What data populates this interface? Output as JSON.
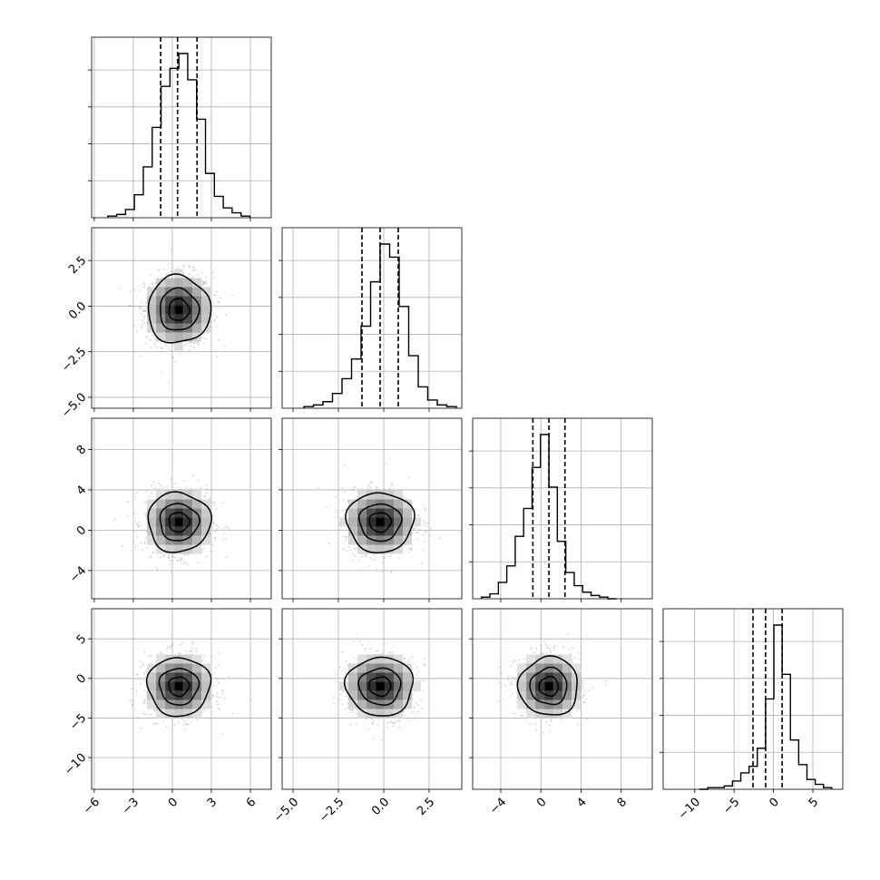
{
  "chart_data": {
    "type": "corner",
    "grid": true,
    "colors": {
      "line": "#000000",
      "density": "#000000",
      "points": "#9a9a9a",
      "grid": "#b0b0b0"
    },
    "parameters": [
      {
        "range": [
          -6.2,
          7.6
        ],
        "mean": 0.5,
        "sigma": 1.3,
        "quantiles": [
          -0.9,
          0.4,
          1.9
        ],
        "ticks": [
          -6,
          -3,
          0,
          3,
          6
        ],
        "tick_labels": [
          "−6",
          "−3",
          "0",
          "3",
          "6"
        ]
      },
      {
        "range": [
          -5.6,
          4.3
        ],
        "mean": -0.2,
        "sigma": 1.0,
        "quantiles": [
          -1.2,
          -0.2,
          0.8
        ],
        "ticks": [
          -5.0,
          -2.5,
          0.0,
          2.5
        ],
        "tick_labels": [
          "−5.0",
          "−2.5",
          "0.0",
          "2.5"
        ]
      },
      {
        "range": [
          -6.8,
          11.1
        ],
        "mean": 0.8,
        "sigma": 1.6,
        "quantiles": [
          -0.8,
          0.8,
          2.4
        ],
        "ticks": [
          -4,
          0,
          4,
          8
        ],
        "tick_labels": [
          "−4",
          "0",
          "4",
          "8"
        ]
      },
      {
        "range": [
          -14.0,
          8.8
        ],
        "mean": -1.0,
        "sigma": 2.0,
        "quantiles": [
          -2.6,
          -1.0,
          1.1
        ],
        "ticks": [
          -10,
          -5,
          0,
          5
        ],
        "tick_labels": [
          "−10",
          "−5",
          "0",
          "5"
        ]
      }
    ],
    "histograms": [
      [
        0.01,
        0.02,
        0.05,
        0.14,
        0.31,
        0.55,
        0.8,
        0.91,
        1.0,
        0.84,
        0.6,
        0.27,
        0.13,
        0.06,
        0.03,
        0.01
      ],
      [
        0.01,
        0.02,
        0.04,
        0.09,
        0.18,
        0.3,
        0.5,
        0.77,
        1.0,
        0.92,
        0.62,
        0.32,
        0.13,
        0.05,
        0.02,
        0.01
      ],
      [
        0.01,
        0.03,
        0.1,
        0.2,
        0.38,
        0.55,
        0.8,
        1.0,
        0.68,
        0.35,
        0.16,
        0.08,
        0.04,
        0.02,
        0.01,
        0.0
      ],
      [
        0.0,
        0.01,
        0.01,
        0.02,
        0.05,
        0.1,
        0.14,
        0.25,
        0.55,
        1.0,
        0.7,
        0.3,
        0.15,
        0.06,
        0.03,
        0.01
      ]
    ],
    "contour_levels_sigma": [
      0.6,
      1.15,
      1.85
    ]
  }
}
